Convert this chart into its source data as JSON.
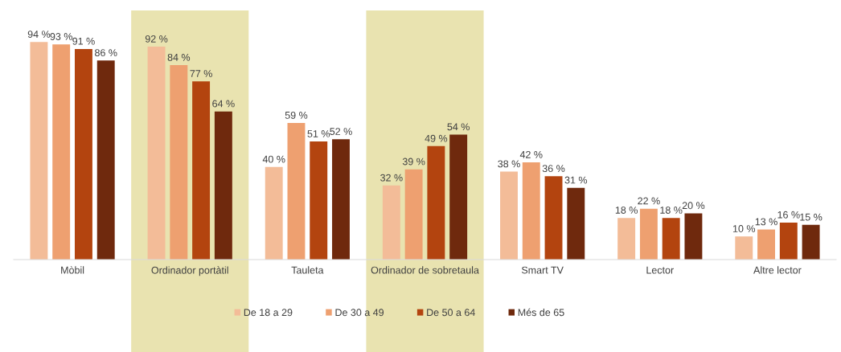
{
  "chart_data": {
    "type": "bar",
    "categories": [
      "Mòbil",
      "Ordinador portàtil",
      "Tauleta",
      "Ordinador de sobretaula",
      "Smart TV",
      "Lector",
      "Altre lector"
    ],
    "series": [
      {
        "name": "De 18 a 29",
        "color": "#f3bc98",
        "values": [
          94,
          92,
          40,
          32,
          38,
          18,
          10
        ],
        "value_labels": [
          "94 %",
          "92 %",
          "40 %",
          "32 %",
          "38 %",
          "18 %",
          "10 %"
        ]
      },
      {
        "name": "De 30 a 49",
        "color": "#eea070",
        "values": [
          93,
          84,
          59,
          39,
          42,
          22,
          13
        ],
        "value_labels": [
          "93 %",
          "84 %",
          "59 %",
          "39 %",
          "42 %",
          "22 %",
          "13 %"
        ]
      },
      {
        "name": "De 50 a 64",
        "color": "#b3440f",
        "values": [
          91,
          77,
          51,
          49,
          36,
          18,
          16
        ],
        "value_labels": [
          "91 %",
          "77 %",
          "51 %",
          "49 %",
          "36 %",
          "18 %",
          "16 %"
        ]
      },
      {
        "name": "Més de 65",
        "color": "#6f290d",
        "values": [
          86,
          64,
          52,
          54,
          31,
          20,
          15
        ],
        "value_labels": [
          "86 %",
          "64 %",
          "52 %",
          "54 %",
          "31 %",
          "20 %",
          "15 %"
        ]
      }
    ],
    "bands": [
      {
        "axis": "x",
        "from": "Ordinador portàtil",
        "to": "Ordinador portàtil",
        "color": "#e9e3b0"
      },
      {
        "axis": "x",
        "from": "Ordinador de sobretaula",
        "to": "Ordinador de sobretaula",
        "color": "#e9e3b0"
      }
    ],
    "tick_labels": "x",
    "grid": false,
    "legend": "bottom"
  }
}
